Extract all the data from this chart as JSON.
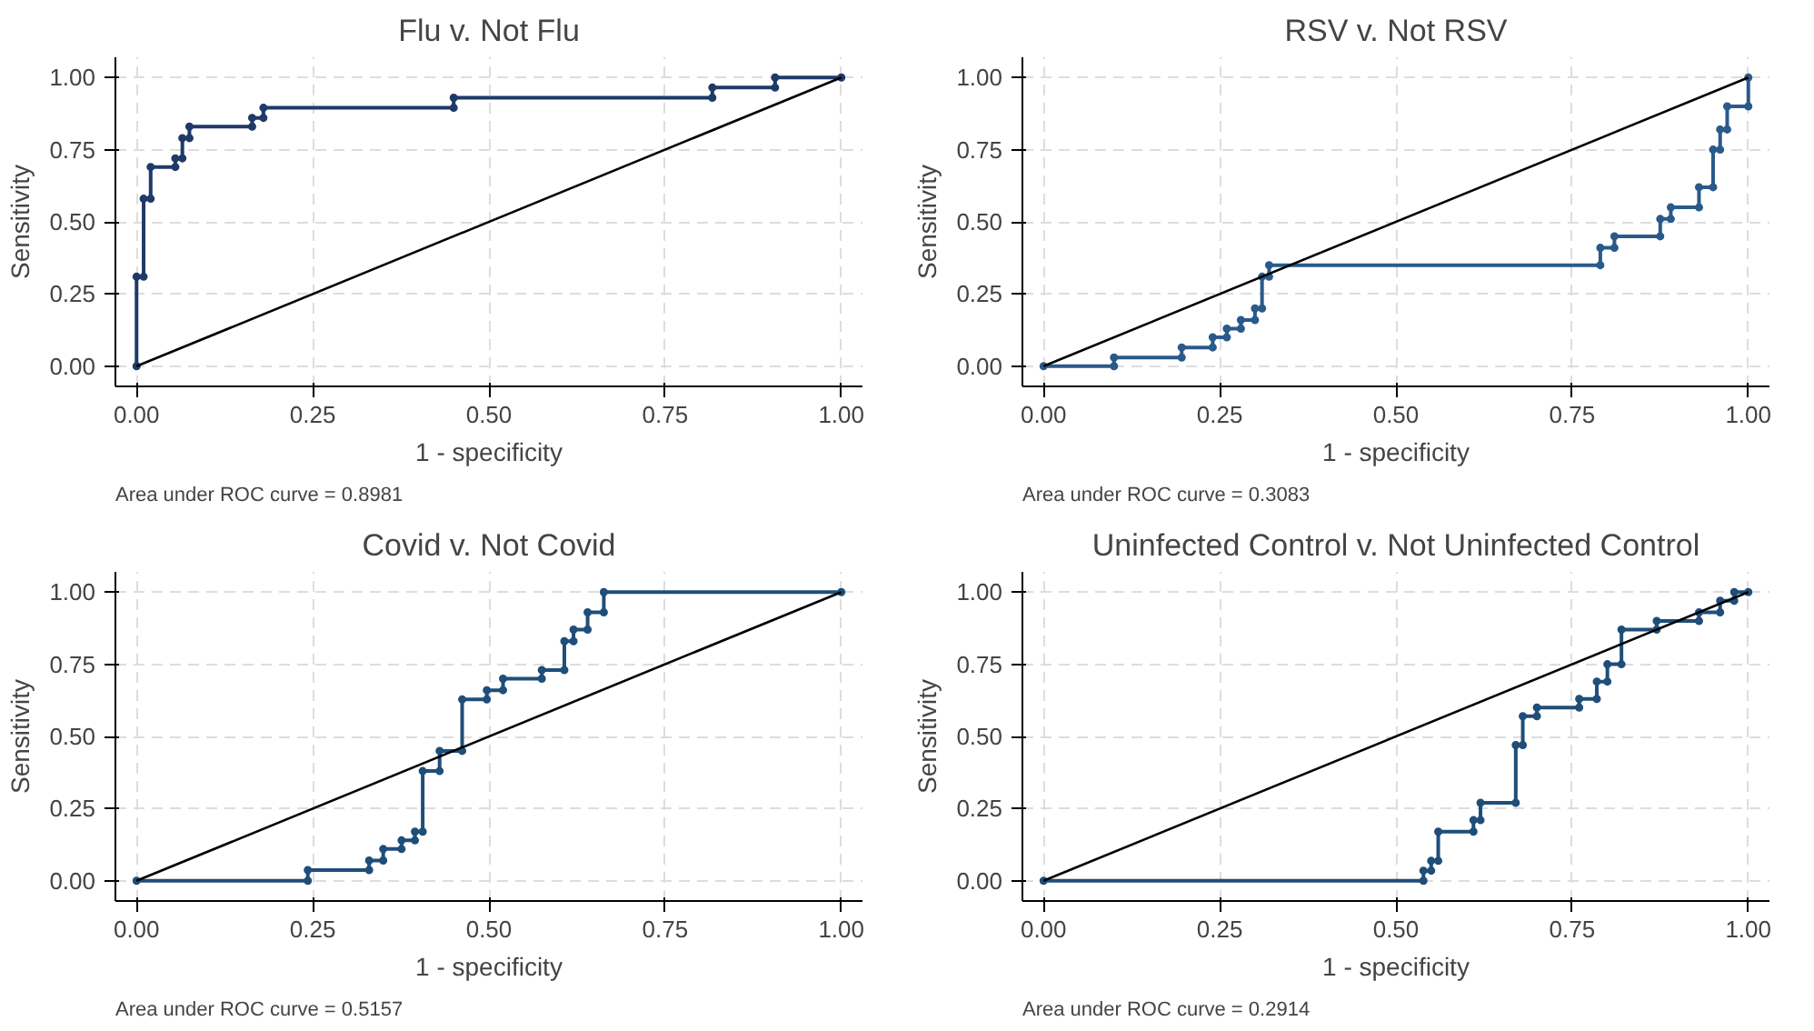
{
  "chart_data": [
    {
      "type": "line",
      "title": "Flu v. Not Flu",
      "xlabel": "1 - specificity",
      "ylabel": "Sensitivity",
      "annotations": [
        "Area under ROC curve = 0.8981"
      ],
      "xlim": [
        -0.03,
        1.03
      ],
      "ylim": [
        -0.07,
        1.07
      ],
      "xticks": [
        {
          "value": 0,
          "label": "0.00"
        },
        {
          "value": 0.25,
          "label": "0.25"
        },
        {
          "value": 0.5,
          "label": "0.50"
        },
        {
          "value": 0.75,
          "label": "0.75"
        },
        {
          "value": 1,
          "label": "1.00"
        }
      ],
      "yticks": [
        {
          "value": 0,
          "label": "0.00"
        },
        {
          "value": 0.25,
          "label": "0.25"
        },
        {
          "value": 0.5,
          "label": "0.50"
        },
        {
          "value": 0.75,
          "label": "0.75"
        },
        {
          "value": 1,
          "label": "1.00"
        }
      ],
      "grid": true,
      "series": [
        {
          "color": "#1f3a68",
          "marker": "circle",
          "x": [
            0,
            0,
            0.01,
            0.01,
            0.02,
            0.02,
            0.055,
            0.055,
            0.065,
            0.065,
            0.075,
            0.075,
            0.164,
            0.164,
            0.18,
            0.18,
            0.45,
            0.45,
            0.817,
            0.817,
            0.906,
            0.906,
            1
          ],
          "values": [
            0,
            0.31,
            0.31,
            0.58,
            0.58,
            0.69,
            0.69,
            0.72,
            0.72,
            0.79,
            0.79,
            0.83,
            0.83,
            0.86,
            0.86,
            0.895,
            0.895,
            0.93,
            0.93,
            0.965,
            0.965,
            1,
            1
          ]
        },
        {
          "color": "#000000",
          "marker": "none",
          "x": [
            0,
            1
          ],
          "values": [
            0,
            1
          ]
        }
      ]
    },
    {
      "type": "line",
      "title": "RSV v. Not RSV",
      "xlabel": "1 - specificity",
      "ylabel": "Sensitivity",
      "annotations": [
        "Area under ROC curve = 0.3083"
      ],
      "xlim": [
        -0.03,
        1.03
      ],
      "ylim": [
        -0.07,
        1.07
      ],
      "xticks": [
        {
          "value": 0,
          "label": "0.00"
        },
        {
          "value": 0.25,
          "label": "0.25"
        },
        {
          "value": 0.5,
          "label": "0.50"
        },
        {
          "value": 0.75,
          "label": "0.75"
        },
        {
          "value": 1,
          "label": "1.00"
        }
      ],
      "yticks": [
        {
          "value": 0,
          "label": "0.00"
        },
        {
          "value": 0.25,
          "label": "0.25"
        },
        {
          "value": 0.5,
          "label": "0.50"
        },
        {
          "value": 0.75,
          "label": "0.75"
        },
        {
          "value": 1,
          "label": "1.00"
        }
      ],
      "grid": true,
      "series": [
        {
          "color": "#2a5a8a",
          "marker": "circle",
          "x": [
            0,
            0.1,
            0.1,
            0.196,
            0.196,
            0.24,
            0.24,
            0.26,
            0.26,
            0.28,
            0.28,
            0.3,
            0.3,
            0.31,
            0.31,
            0.32,
            0.32,
            0.79,
            0.79,
            0.81,
            0.81,
            0.875,
            0.875,
            0.89,
            0.89,
            0.93,
            0.93,
            0.95,
            0.95,
            0.96,
            0.96,
            0.97,
            0.97,
            1,
            1
          ],
          "values": [
            0,
            0,
            0.03,
            0.03,
            0.065,
            0.065,
            0.1,
            0.1,
            0.13,
            0.13,
            0.16,
            0.16,
            0.2,
            0.2,
            0.31,
            0.31,
            0.35,
            0.35,
            0.41,
            0.41,
            0.45,
            0.45,
            0.51,
            0.51,
            0.55,
            0.55,
            0.62,
            0.62,
            0.75,
            0.75,
            0.82,
            0.82,
            0.9,
            0.9,
            1
          ]
        },
        {
          "color": "#000000",
          "marker": "none",
          "x": [
            0,
            1
          ],
          "values": [
            0,
            1
          ]
        }
      ]
    },
    {
      "type": "line",
      "title": "Covid v. Not Covid",
      "xlabel": "1 - specificity",
      "ylabel": "Sensitivity",
      "annotations": [
        "Area under ROC curve = 0.5157"
      ],
      "xlim": [
        -0.03,
        1.03
      ],
      "ylim": [
        -0.07,
        1.07
      ],
      "xticks": [
        {
          "value": 0,
          "label": "0.00"
        },
        {
          "value": 0.25,
          "label": "0.25"
        },
        {
          "value": 0.5,
          "label": "0.50"
        },
        {
          "value": 0.75,
          "label": "0.75"
        },
        {
          "value": 1,
          "label": "1.00"
        }
      ],
      "yticks": [
        {
          "value": 0,
          "label": "0.00"
        },
        {
          "value": 0.25,
          "label": "0.25"
        },
        {
          "value": 0.5,
          "label": "0.50"
        },
        {
          "value": 0.75,
          "label": "0.75"
        },
        {
          "value": 1,
          "label": "1.00"
        }
      ],
      "grid": true,
      "series": [
        {
          "color": "#1f4e79",
          "marker": "circle",
          "x": [
            0,
            0.243,
            0.243,
            0.33,
            0.33,
            0.35,
            0.35,
            0.376,
            0.376,
            0.395,
            0.395,
            0.406,
            0.406,
            0.43,
            0.43,
            0.462,
            0.462,
            0.497,
            0.497,
            0.52,
            0.52,
            0.575,
            0.575,
            0.607,
            0.607,
            0.62,
            0.62,
            0.64,
            0.64,
            0.663,
            0.663,
            1
          ],
          "values": [
            0,
            0,
            0.037,
            0.037,
            0.07,
            0.07,
            0.11,
            0.11,
            0.14,
            0.14,
            0.17,
            0.17,
            0.38,
            0.38,
            0.45,
            0.45,
            0.628,
            0.628,
            0.66,
            0.66,
            0.7,
            0.7,
            0.73,
            0.73,
            0.83,
            0.83,
            0.87,
            0.87,
            0.93,
            0.93,
            1,
            1
          ]
        },
        {
          "color": "#000000",
          "marker": "none",
          "x": [
            0,
            1
          ],
          "values": [
            0,
            1
          ]
        }
      ]
    },
    {
      "type": "line",
      "title": "Uninfected Control v. Not Uninfected Control",
      "xlabel": "1 - specificity",
      "ylabel": "Sensitivity",
      "annotations": [
        "Area under ROC curve = 0.2914"
      ],
      "xlim": [
        -0.03,
        1.03
      ],
      "ylim": [
        -0.07,
        1.07
      ],
      "xticks": [
        {
          "value": 0,
          "label": "0.00"
        },
        {
          "value": 0.25,
          "label": "0.25"
        },
        {
          "value": 0.5,
          "label": "0.50"
        },
        {
          "value": 0.75,
          "label": "0.75"
        },
        {
          "value": 1,
          "label": "1.00"
        }
      ],
      "yticks": [
        {
          "value": 0,
          "label": "0.00"
        },
        {
          "value": 0.25,
          "label": "0.25"
        },
        {
          "value": 0.5,
          "label": "0.50"
        },
        {
          "value": 0.75,
          "label": "0.75"
        },
        {
          "value": 1,
          "label": "1.00"
        }
      ],
      "grid": true,
      "series": [
        {
          "color": "#1f4e79",
          "marker": "circle",
          "x": [
            0,
            0.539,
            0.539,
            0.55,
            0.55,
            0.56,
            0.56,
            0.61,
            0.61,
            0.62,
            0.62,
            0.67,
            0.67,
            0.68,
            0.68,
            0.7,
            0.7,
            0.76,
            0.76,
            0.785,
            0.785,
            0.8,
            0.8,
            0.82,
            0.82,
            0.87,
            0.87,
            0.93,
            0.93,
            0.96,
            0.96,
            0.98,
            0.98,
            1
          ],
          "values": [
            0,
            0,
            0.035,
            0.035,
            0.069,
            0.069,
            0.17,
            0.17,
            0.21,
            0.21,
            0.27,
            0.27,
            0.47,
            0.47,
            0.57,
            0.57,
            0.6,
            0.6,
            0.63,
            0.63,
            0.69,
            0.69,
            0.75,
            0.75,
            0.87,
            0.87,
            0.9,
            0.9,
            0.93,
            0.93,
            0.97,
            0.97,
            1,
            1
          ]
        },
        {
          "color": "#000000",
          "marker": "none",
          "x": [
            0,
            1
          ],
          "values": [
            0,
            1
          ]
        }
      ]
    }
  ]
}
